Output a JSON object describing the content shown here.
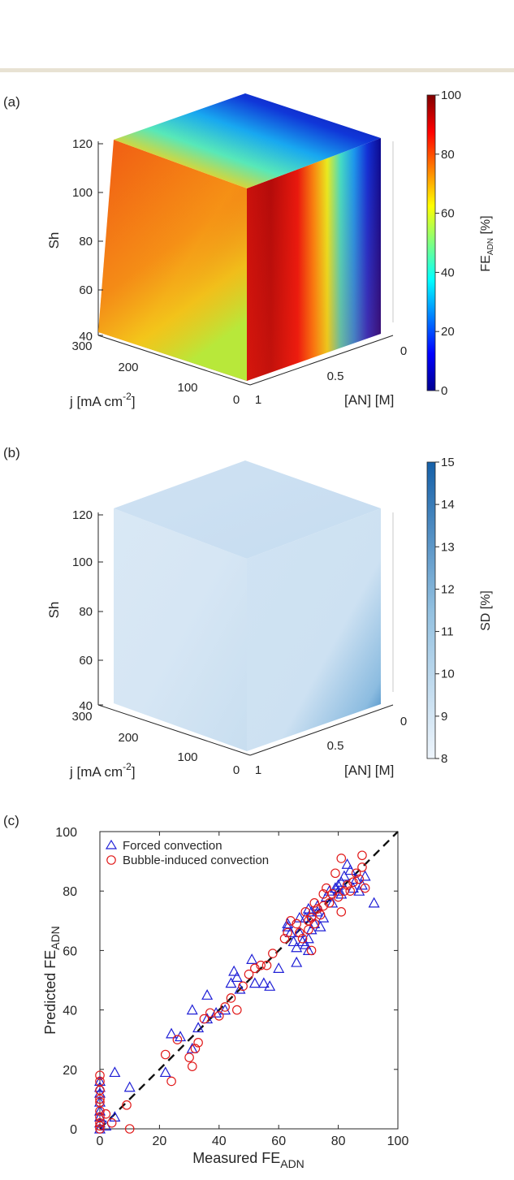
{
  "panels": {
    "a": {
      "tag": "(a)",
      "z_label": "Sh",
      "z_ticks": [
        "40",
        "60",
        "80",
        "100",
        "120"
      ],
      "j_label_main": "j [mA cm",
      "j_label_sup": "-2",
      "j_label_end": "]",
      "j_ticks": [
        "300",
        "200",
        "100",
        "0"
      ],
      "an_label": "[AN] [M]",
      "an_ticks": [
        "1",
        "0.5",
        "0"
      ],
      "colorbar": {
        "label_main": "FE",
        "label_sub": "ADN",
        "label_end": " [%]",
        "ticks": [
          "0",
          "20",
          "40",
          "60",
          "80",
          "100"
        ],
        "min": 0,
        "max": 100
      }
    },
    "b": {
      "tag": "(b)",
      "z_label": "Sh",
      "z_ticks": [
        "40",
        "60",
        "80",
        "100",
        "120"
      ],
      "j_label_main": "j [mA cm",
      "j_label_sup": "-2",
      "j_label_end": "]",
      "j_ticks": [
        "300",
        "200",
        "100",
        "0"
      ],
      "an_label": "[AN] [M]",
      "an_ticks": [
        "1",
        "0.5",
        "0"
      ],
      "colorbar": {
        "label": "SD [%]",
        "ticks": [
          "8",
          "9",
          "10",
          "11",
          "12",
          "13",
          "14",
          "15"
        ],
        "min": 8,
        "max": 15
      }
    },
    "c": {
      "tag": "(c)",
      "xlabel_main": "Measured FE",
      "xlabel_sub": "ADN",
      "ylabel_main": "Predicted FE",
      "ylabel_sub": "ADN",
      "x_ticks": [
        "0",
        "20",
        "40",
        "60",
        "80",
        "100"
      ],
      "y_ticks": [
        "0",
        "20",
        "40",
        "60",
        "80",
        "100"
      ],
      "legend": [
        "Forced convection",
        "Bubble-induced convection"
      ]
    }
  },
  "colors": {
    "forced": "#1f1fd6",
    "bubble": "#e11a1a",
    "axis": "#262626"
  },
  "chart_data": [
    {
      "type": "heatmap",
      "panel": "a",
      "axes": {
        "x": "[AN] [M]",
        "y": "j [mA cm-2]",
        "z": "Sh"
      },
      "xlim": [
        0,
        1
      ],
      "ylim": [
        0,
        300
      ],
      "zlim": [
        40,
        120
      ],
      "color_metric": "FE_ADN [%]",
      "color_range": [
        0,
        100
      ],
      "colormap": "jet",
      "grid": false
    },
    {
      "type": "heatmap",
      "panel": "b",
      "axes": {
        "x": "[AN] [M]",
        "y": "j [mA cm-2]",
        "z": "Sh"
      },
      "xlim": [
        0,
        1
      ],
      "ylim": [
        0,
        300
      ],
      "zlim": [
        40,
        120
      ],
      "color_metric": "SD [%]",
      "color_range": [
        8,
        15
      ],
      "colormap": "blues",
      "grid": false
    },
    {
      "type": "scatter",
      "panel": "c",
      "xlabel": "Measured FE_ADN",
      "ylabel": "Predicted FE_ADN",
      "xlim": [
        0,
        100
      ],
      "ylim": [
        0,
        100
      ],
      "legend_position": "top-left",
      "reference_line": {
        "style": "dashed",
        "from": [
          0,
          0
        ],
        "to": [
          100,
          100
        ]
      },
      "series": [
        {
          "name": "Forced convection",
          "marker": "triangle",
          "x": [
            0,
            0,
            0,
            0,
            0,
            0,
            0,
            0,
            2,
            5,
            5,
            10,
            22,
            24,
            27,
            31,
            31,
            33,
            36,
            36,
            39,
            42,
            44,
            45,
            46,
            47,
            51,
            52,
            55,
            57,
            60,
            63,
            63,
            64,
            65,
            66,
            66,
            67,
            67,
            68,
            69,
            69,
            70,
            70,
            70,
            71,
            71,
            72,
            73,
            73,
            74,
            75,
            76,
            77,
            78,
            79,
            80,
            80,
            81,
            81,
            82,
            83,
            84,
            85,
            86,
            87,
            88,
            89,
            92
          ],
          "y": [
            0,
            2,
            4,
            6,
            9,
            12,
            14,
            16,
            1,
            19,
            4,
            14,
            19,
            32,
            31,
            40,
            27,
            34,
            45,
            37,
            39,
            40,
            49,
            53,
            51,
            47,
            57,
            49,
            49,
            48,
            54,
            68,
            69,
            66,
            63,
            61,
            56,
            71,
            66,
            63,
            62,
            71,
            60,
            64,
            74,
            67,
            73,
            69,
            73,
            75,
            68,
            71,
            78,
            80,
            76,
            81,
            80,
            82,
            79,
            83,
            85,
            89,
            87,
            81,
            84,
            80,
            82,
            85,
            76
          ]
        },
        {
          "name": "Bubble-induced convection",
          "marker": "circle",
          "x": [
            0,
            0,
            0,
            0,
            0,
            0,
            0,
            0,
            0,
            0,
            2,
            4,
            9,
            10,
            22,
            24,
            26,
            30,
            31,
            32,
            33,
            35,
            37,
            40,
            42,
            44,
            46,
            48,
            50,
            52,
            54,
            56,
            58,
            62,
            63,
            64,
            66,
            67,
            68,
            69,
            70,
            70,
            71,
            71,
            72,
            72,
            73,
            74,
            75,
            75,
            76,
            77,
            78,
            79,
            80,
            81,
            81,
            82,
            83,
            84,
            85,
            86,
            87,
            88,
            88,
            89
          ],
          "y": [
            0,
            1,
            2,
            4,
            6,
            9,
            10,
            13,
            16,
            18,
            5,
            2,
            8,
            0,
            25,
            16,
            30,
            24,
            21,
            27,
            29,
            37,
            39,
            38,
            41,
            44,
            40,
            48,
            52,
            54,
            55,
            55,
            59,
            64,
            66,
            70,
            69,
            66,
            64,
            73,
            67,
            70,
            60,
            71,
            69,
            76,
            74,
            72,
            75,
            79,
            81,
            76,
            79,
            86,
            78,
            73,
            91,
            80,
            82,
            80,
            83,
            86,
            84,
            92,
            88,
            81
          ]
        }
      ]
    }
  ]
}
